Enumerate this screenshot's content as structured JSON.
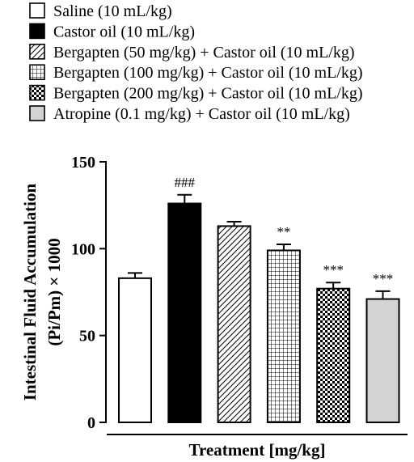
{
  "chart_data": {
    "type": "bar",
    "title": "",
    "xlabel": "Treatment [mg/kg]",
    "ylabel_line1": "Intestinal Fluid Accumulation",
    "ylabel_line2": "(Pi/Pm) × 1000",
    "ylim": [
      0,
      150
    ],
    "yticks": [
      "0",
      "50",
      "100",
      "150"
    ],
    "ytick_values": [
      0,
      50,
      100,
      150
    ],
    "grid": false,
    "legend_position": "top",
    "series": [
      {
        "name": "Saline (10 mL/kg)",
        "value": 83,
        "error": 3,
        "significance": "",
        "fill": "#ffffff",
        "pattern": "none"
      },
      {
        "name": "Castor oil (10 mL/kg)",
        "value": 126,
        "error": 5,
        "significance": "###",
        "fill": "#000000",
        "pattern": "solid"
      },
      {
        "name": "Bergapten (50 mg/kg) + Castor oil (10 mL/kg)",
        "value": 113,
        "error": 2.5,
        "significance": "",
        "fill": "#ffffff",
        "pattern": "diagonal"
      },
      {
        "name": "Bergapten (100 mg/kg) + Castor oil (10 mL/kg)",
        "value": 99,
        "error": 3.5,
        "significance": "**",
        "fill": "#ffffff",
        "pattern": "grid"
      },
      {
        "name": "Bergapten (200 mg/kg) + Castor oil  (10 mL/kg)",
        "value": 77,
        "error": 3.5,
        "significance": "***",
        "fill": "#ffffff",
        "pattern": "checker"
      },
      {
        "name": "Atropine (0.1 mg/kg) + Castor oil (10 mL/kg)",
        "value": 71,
        "error": 4.5,
        "significance": "***",
        "fill": "#d3d3d3",
        "pattern": "solid"
      }
    ]
  }
}
